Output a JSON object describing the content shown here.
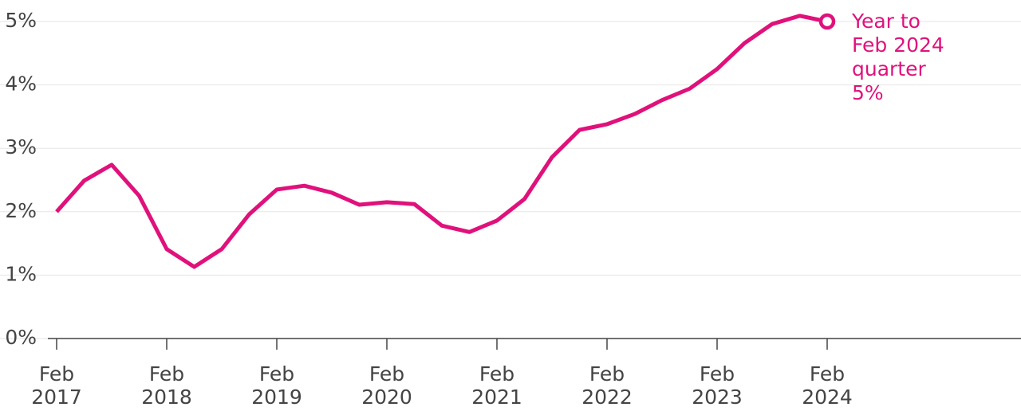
{
  "chart_data": {
    "type": "line",
    "categories": [
      "Feb 2017",
      null,
      null,
      null,
      "Feb 2018",
      null,
      null,
      null,
      "Feb 2019",
      null,
      null,
      null,
      "Feb 2020",
      null,
      null,
      null,
      "Feb 2021",
      null,
      null,
      null,
      "Feb 2022",
      null,
      null,
      null,
      "Feb 2023",
      null,
      null,
      null,
      "Feb 2024"
    ],
    "series": [
      {
        "color": "#e0117b",
        "values": [
          2.0,
          2.49,
          2.74,
          2.25,
          1.41,
          1.13,
          1.41,
          1.96,
          2.35,
          2.41,
          2.3,
          2.11,
          2.15,
          2.12,
          1.78,
          1.68,
          1.86,
          2.2,
          2.86,
          3.29,
          3.38,
          3.54,
          3.76,
          3.94,
          4.25,
          4.66,
          4.96,
          5.09,
          5.0
        ]
      }
    ],
    "ylim": [
      0,
      5
    ],
    "yticks": [
      {
        "value": 0,
        "label": "0%"
      },
      {
        "value": 1,
        "label": "1%"
      },
      {
        "value": 2,
        "label": "2%"
      },
      {
        "value": 3,
        "label": "3%"
      },
      {
        "value": 4,
        "label": "4%"
      },
      {
        "value": 5,
        "label": "5%"
      }
    ],
    "grid": true,
    "annotation": [
      "Year to",
      "Feb 2024",
      "quarter",
      "5%"
    ]
  }
}
